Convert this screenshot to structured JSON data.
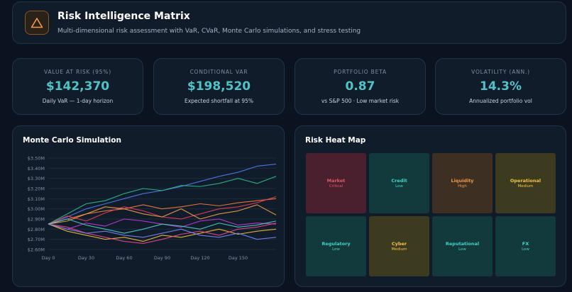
{
  "header": {
    "title": "Risk Intelligence Matrix",
    "subtitle": "Multi-dimensional risk assessment with VaR, CVaR, Monte Carlo simulations, and stress testing"
  },
  "kpis": [
    {
      "label": "VALUE AT RISK (95%)",
      "value": "$142,370",
      "sub": "Daily VaR — 1-day horizon"
    },
    {
      "label": "CONDITIONAL VAR",
      "value": "$198,520",
      "sub": "Expected shortfall at 95%"
    },
    {
      "label": "PORTFOLIO BETA",
      "value": "0.87",
      "sub": "vs S&P 500 · Low market risk"
    },
    {
      "label": "VOLATILITY (ANN.)",
      "value": "14.3%",
      "sub": "Annualized portfolio vol"
    }
  ],
  "monte_carlo": {
    "title": "Monte Carlo Simulation"
  },
  "heatmap": {
    "title": "Risk Heat Map",
    "cells": [
      {
        "name": "Market",
        "level": "Critical",
        "bg": "#4a1f2e",
        "fg": "#e05a6a"
      },
      {
        "name": "Credit",
        "level": "Low",
        "bg": "#123a3d",
        "fg": "#3fd6c6"
      },
      {
        "name": "Liquidity",
        "level": "High",
        "bg": "#3e2f23",
        "fg": "#f39a45"
      },
      {
        "name": "Operational",
        "level": "Medium",
        "bg": "#3c3a1f",
        "fg": "#f5c542"
      },
      {
        "name": "Regulatory",
        "level": "Low",
        "bg": "#123a3d",
        "fg": "#3fd6c6"
      },
      {
        "name": "Cyber",
        "level": "Medium",
        "bg": "#3c3a1f",
        "fg": "#f5c542"
      },
      {
        "name": "Reputational",
        "level": "Low",
        "bg": "#123a3d",
        "fg": "#3fd6c6"
      },
      {
        "name": "FX",
        "level": "Low",
        "bg": "#123a3d",
        "fg": "#3fd6c6"
      }
    ]
  },
  "chart_data": {
    "type": "line",
    "title": "Monte Carlo Simulation",
    "xlabel": "",
    "ylabel": "",
    "x_ticks": [
      "Day 0",
      "Day 30",
      "Day 60",
      "Day 90",
      "Day 120",
      "Day 150"
    ],
    "y_ticks": [
      "$2.60M",
      "$2.70M",
      "$2.80M",
      "$2.90M",
      "$3.00M",
      "$3.10M",
      "$3.20M",
      "$3.30M",
      "$3.40M",
      "$3.50M"
    ],
    "xlim": [
      0,
      180
    ],
    "ylim": [
      2.6,
      3.5
    ],
    "grid": true,
    "x": [
      0,
      15,
      30,
      45,
      60,
      75,
      90,
      105,
      120,
      135,
      150,
      165,
      180
    ],
    "series": [
      {
        "color": "#4f7ef7",
        "values": [
          2.85,
          2.92,
          3.0,
          3.05,
          3.1,
          3.15,
          3.18,
          3.22,
          3.27,
          3.32,
          3.36,
          3.42,
          3.44
        ]
      },
      {
        "color": "#2dbf8f",
        "values": [
          2.85,
          2.95,
          3.05,
          3.08,
          3.15,
          3.2,
          3.18,
          3.23,
          3.22,
          3.25,
          3.3,
          3.25,
          3.32
        ]
      },
      {
        "color": "#f57c3a",
        "values": [
          2.85,
          2.9,
          2.95,
          2.98,
          3.0,
          3.04,
          3.0,
          3.02,
          3.05,
          3.03,
          3.06,
          3.08,
          3.1
        ]
      },
      {
        "color": "#e83e5c",
        "values": [
          2.85,
          2.93,
          2.88,
          2.96,
          3.02,
          2.98,
          2.92,
          2.9,
          2.95,
          3.0,
          3.02,
          3.06,
          3.12
        ]
      },
      {
        "color": "#f0a34a",
        "values": [
          2.85,
          2.88,
          2.95,
          3.02,
          3.0,
          2.95,
          2.92,
          3.0,
          2.9,
          2.95,
          2.98,
          3.04,
          2.94
        ]
      },
      {
        "color": "#c33de0",
        "values": [
          2.85,
          2.8,
          2.86,
          2.83,
          2.9,
          2.88,
          2.85,
          2.82,
          2.88,
          2.9,
          2.84,
          2.86,
          2.85
        ]
      },
      {
        "color": "#f4c430",
        "values": [
          2.85,
          2.78,
          2.74,
          2.7,
          2.72,
          2.68,
          2.74,
          2.72,
          2.76,
          2.8,
          2.75,
          2.78,
          2.8
        ]
      },
      {
        "color": "#f0488a",
        "values": [
          2.85,
          2.82,
          2.76,
          2.72,
          2.68,
          2.66,
          2.7,
          2.75,
          2.78,
          2.74,
          2.8,
          2.82,
          2.86
        ]
      },
      {
        "color": "#4fd1c5",
        "values": [
          2.85,
          2.9,
          2.84,
          2.8,
          2.76,
          2.8,
          2.85,
          2.83,
          2.8,
          2.86,
          2.82,
          2.84,
          2.88
        ]
      },
      {
        "color": "#7b86f5",
        "values": [
          2.85,
          2.8,
          2.76,
          2.78,
          2.74,
          2.72,
          2.76,
          2.8,
          2.74,
          2.72,
          2.76,
          2.7,
          2.72
        ]
      }
    ]
  }
}
